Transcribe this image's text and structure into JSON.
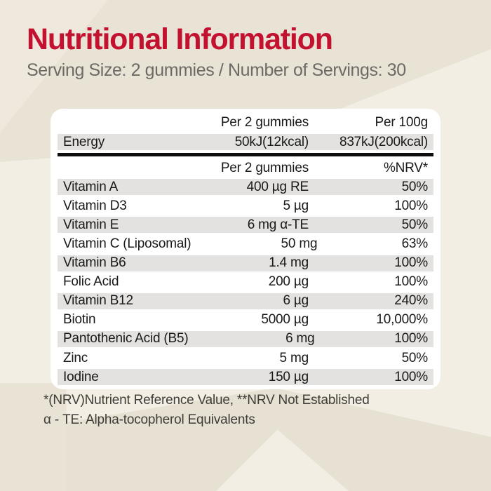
{
  "header": {
    "title": "Nutritional Information",
    "subtitle": "Serving Size: 2 gummies / Number of Servings: 30"
  },
  "table": {
    "energy_header": {
      "per2_label": "Per 2 gummies",
      "per100_label": "Per 100g"
    },
    "energy_row": {
      "name": "Energy",
      "per2": "50kJ(12kcal)",
      "per100": "837kJ(200kcal)"
    },
    "nutrient_header": {
      "per2_label": "Per 2 gummies",
      "nrv_label": "%NRV*"
    },
    "rows": [
      {
        "name": "Vitamin A",
        "amount": "400 µg RE",
        "nrv": "50%"
      },
      {
        "name": "Vitamin D3",
        "amount": "5 µg",
        "nrv": "100%"
      },
      {
        "name": "Vitamin E",
        "amount": "6 mg α-TE",
        "nrv": "50%"
      },
      {
        "name": "Vitamin C (Liposomal)",
        "amount": "50 mg",
        "nrv": "63%"
      },
      {
        "name": "Vitamin B6",
        "amount": "1.4 mg",
        "nrv": "100%"
      },
      {
        "name": "Folic Acid",
        "amount": "200 µg",
        "nrv": "100%"
      },
      {
        "name": "Vitamin B12",
        "amount": "6 µg",
        "nrv": "240%"
      },
      {
        "name": "Biotin",
        "amount": "5000 µg",
        "nrv": "10,000%"
      },
      {
        "name": "Pantothenic Acid (B5)",
        "amount": "6 mg",
        "nrv": "100%"
      },
      {
        "name": "Zinc",
        "amount": "5 mg",
        "nrv": "50%"
      },
      {
        "name": "Iodine",
        "amount": "150 µg",
        "nrv": "100%"
      }
    ]
  },
  "footnotes": {
    "line1": "*(NRV)Nutrient Reference Value, **NRV Not Established",
    "line2": "α - TE: Alpha-tocopherol Equivalents"
  },
  "colors": {
    "title_red": "#c2122f",
    "subtitle_gray": "#6d6a66",
    "table_text": "#191919",
    "stripe_gray": "#e3e2e0",
    "divider_black": "#0e0e0e",
    "card_white": "#ffffff",
    "background_cream": "#f3eee3",
    "background_beige": "#e9e3d6"
  }
}
